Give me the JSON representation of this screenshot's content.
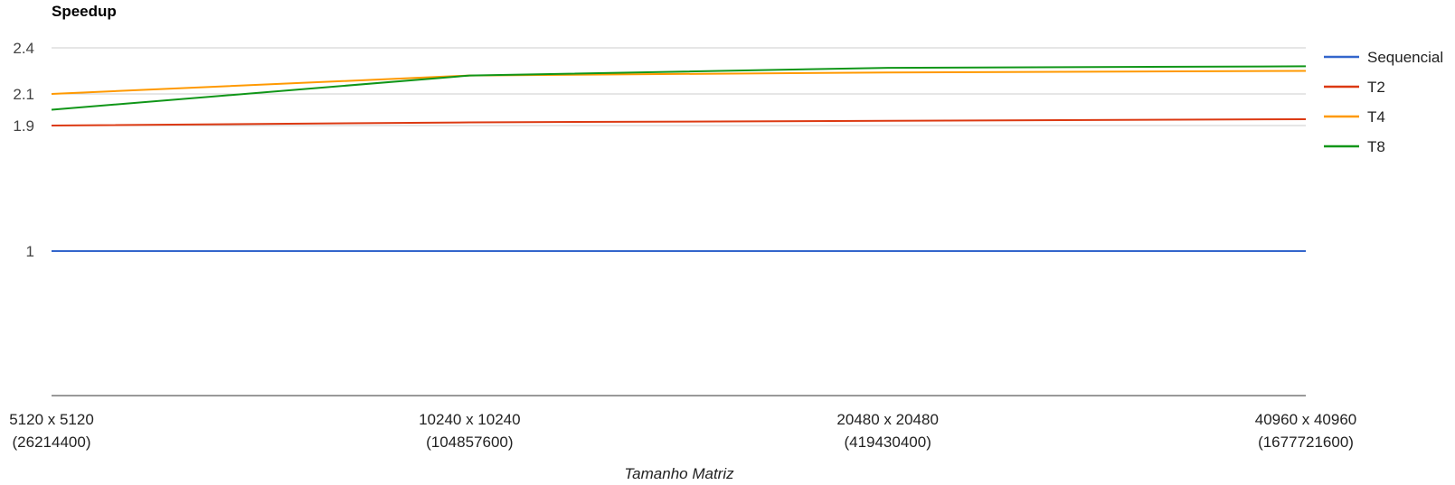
{
  "chart_data": {
    "type": "line",
    "title": "Speedup",
    "xlabel": "Tamanho Matriz",
    "ylabel": "",
    "categories": [
      [
        "5120 x 5120",
        "(26214400)"
      ],
      [
        "10240 x 10240",
        "(104857600)"
      ],
      [
        "20480 x 20480",
        "(419430400)"
      ],
      [
        "40960 x 40960",
        "(1677721600)"
      ]
    ],
    "y_ticks": [
      {
        "label": "2.4",
        "value": 2.4
      },
      {
        "label": "2.1",
        "value": 2.1
      },
      {
        "label": "1.9",
        "value": 1.9
      },
      {
        "label": "1",
        "value": 1
      }
    ],
    "grid": true,
    "legend": "right",
    "series": [
      {
        "name": "Sequencial",
        "color": "#3366cc",
        "values": [
          1.0,
          1.0,
          1.0,
          1.0
        ]
      },
      {
        "name": "T2",
        "color": "#dc3912",
        "values": [
          1.9,
          1.92,
          1.93,
          1.94
        ]
      },
      {
        "name": "T4",
        "color": "#ff9900",
        "values": [
          2.1,
          2.22,
          2.24,
          2.25
        ]
      },
      {
        "name": "T8",
        "color": "#109618",
        "values": [
          2.0,
          2.22,
          2.27,
          2.28
        ]
      }
    ]
  }
}
